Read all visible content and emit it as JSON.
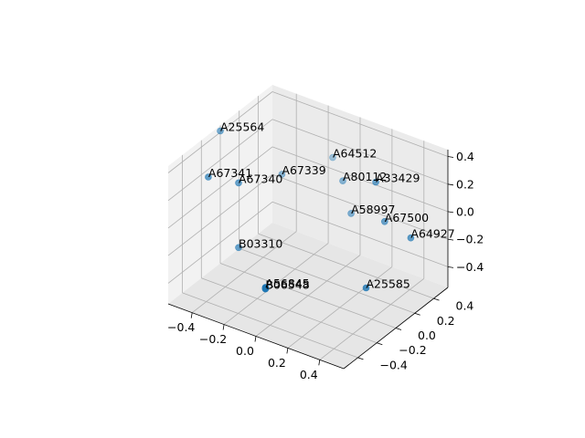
{
  "chart_data": {
    "type": "scatter",
    "projection": "3d",
    "title": "",
    "xlabel": "",
    "ylabel": "",
    "zlabel": "",
    "grid": true,
    "marker_color": "#1f77b4",
    "xlim": [
      -0.55,
      0.55
    ],
    "ylim": [
      -0.55,
      0.55
    ],
    "zlim": [
      -0.55,
      0.45
    ],
    "xticks": [
      -0.4,
      -0.2,
      0.0,
      0.2,
      0.4
    ],
    "xticklabels": [
      "−0.4",
      "−0.2",
      "0.0",
      "0.2",
      "0.4"
    ],
    "yticks": [
      -0.4,
      -0.2,
      0.0,
      0.2,
      0.4
    ],
    "yticklabels": [
      "−0.4",
      "−0.2",
      "0.0",
      "0.2",
      "0.4"
    ],
    "zticks": [
      -0.4,
      -0.2,
      0.0,
      0.2,
      0.4
    ],
    "zticklabels": [
      "−0.4",
      "−0.2",
      "0.0",
      "0.2",
      "0.4"
    ],
    "points": [
      {
        "label": "A64512",
        "x": -0.16,
        "y": 0.53,
        "z": 0.1
      },
      {
        "label": "A33429",
        "x": 0.27,
        "y": 0.26,
        "z": 0.25
      },
      {
        "label": "A80112",
        "x": -0.02,
        "y": 0.4,
        "z": 0.06
      },
      {
        "label": "A67339",
        "x": -0.33,
        "y": 0.28,
        "z": 0.04
      },
      {
        "label": "A25564",
        "x": -0.55,
        "y": 0.0,
        "z": 0.41
      },
      {
        "label": "A58997",
        "x": 0.05,
        "y": 0.37,
        "z": -0.13
      },
      {
        "label": "A67500",
        "x": 0.29,
        "y": 0.32,
        "z": -0.06
      },
      {
        "label": "A64927",
        "x": 0.46,
        "y": 0.31,
        "z": -0.1
      },
      {
        "label": "A67340",
        "x": -0.4,
        "y": -0.06,
        "z": 0.13
      },
      {
        "label": "A67341",
        "x": -0.53,
        "y": -0.16,
        "z": 0.17
      },
      {
        "label": "B03310",
        "x": -0.4,
        "y": -0.06,
        "z": -0.34
      },
      {
        "label": "A25585",
        "x": 0.34,
        "y": 0.04,
        "z": -0.37
      },
      {
        "label": "A56845",
        "x": 0.0,
        "y": -0.45,
        "z": -0.25
      },
      {
        "label": "B06548",
        "x": 0.0,
        "y": -0.45,
        "z": -0.26
      }
    ]
  }
}
